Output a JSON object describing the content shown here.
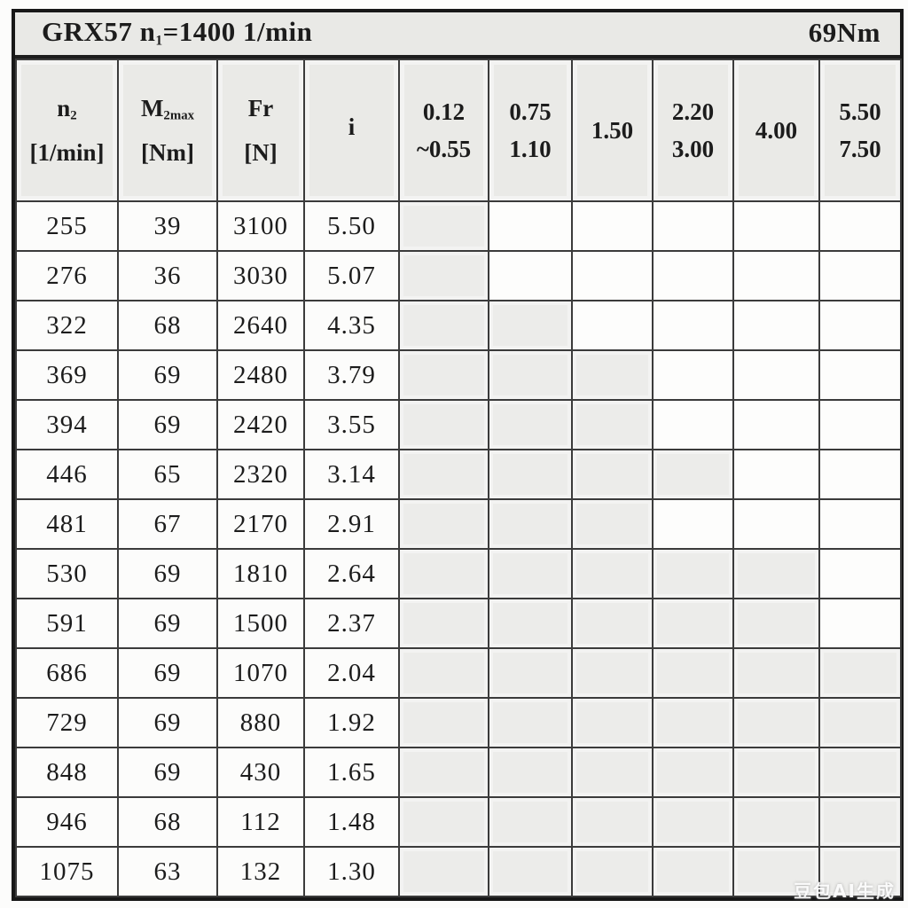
{
  "title": {
    "model_pre": "GRX57 n",
    "model_sub": "1",
    "model_post": "=1400 1/min",
    "torque": "69Nm"
  },
  "header": {
    "cols": [
      {
        "pre": "n",
        "sub": "2",
        "line2": "[1/min]"
      },
      {
        "pre": "M",
        "sub": "2max",
        "line2": "[Nm]"
      },
      {
        "pre": "Fr",
        "sub": "",
        "line2": "[N]"
      },
      {
        "pre": "i",
        "sub": "",
        "line2": ""
      }
    ],
    "power_cols": [
      {
        "line1": "0.12",
        "line2": "~0.55"
      },
      {
        "line1": "0.75",
        "line2": "1.10"
      },
      {
        "line1": "1.50",
        "line2": ""
      },
      {
        "line1": "2.20",
        "line2": "3.00"
      },
      {
        "line1": "4.00",
        "line2": ""
      },
      {
        "line1": "5.50",
        "line2": "7.50"
      }
    ]
  },
  "rows": [
    {
      "n2": "255",
      "m2max": "39",
      "fr": "3100",
      "i": "5.50",
      "shaded": 1
    },
    {
      "n2": "276",
      "m2max": "36",
      "fr": "3030",
      "i": "5.07",
      "shaded": 1
    },
    {
      "n2": "322",
      "m2max": "68",
      "fr": "2640",
      "i": "4.35",
      "shaded": 2
    },
    {
      "n2": "369",
      "m2max": "69",
      "fr": "2480",
      "i": "3.79",
      "shaded": 3
    },
    {
      "n2": "394",
      "m2max": "69",
      "fr": "2420",
      "i": "3.55",
      "shaded": 3
    },
    {
      "n2": "446",
      "m2max": "65",
      "fr": "2320",
      "i": "3.14",
      "shaded": 4
    },
    {
      "n2": "481",
      "m2max": "67",
      "fr": "2170",
      "i": "2.91",
      "shaded": 3
    },
    {
      "n2": "530",
      "m2max": "69",
      "fr": "1810",
      "i": "2.64",
      "shaded": 5
    },
    {
      "n2": "591",
      "m2max": "69",
      "fr": "1500",
      "i": "2.37",
      "shaded": 5
    },
    {
      "n2": "686",
      "m2max": "69",
      "fr": "1070",
      "i": "2.04",
      "shaded": 6
    },
    {
      "n2": "729",
      "m2max": "69",
      "fr": "880",
      "i": "1.92",
      "shaded": 6
    },
    {
      "n2": "848",
      "m2max": "69",
      "fr": "430",
      "i": "1.65",
      "shaded": 6
    },
    {
      "n2": "946",
      "m2max": "68",
      "fr": "112",
      "i": "1.48",
      "shaded": 6
    },
    {
      "n2": "1075",
      "m2max": "63",
      "fr": "132",
      "i": "1.30",
      "shaded": 6
    }
  ],
  "watermark": "豆包AI生成",
  "colors": {
    "header_fill": "#eaeae7",
    "shaded_cell_fill": "#ececea",
    "data_cell_fill": "#fcfcfb",
    "grid_line": "#3b3b3b",
    "outer_border": "#181818"
  }
}
